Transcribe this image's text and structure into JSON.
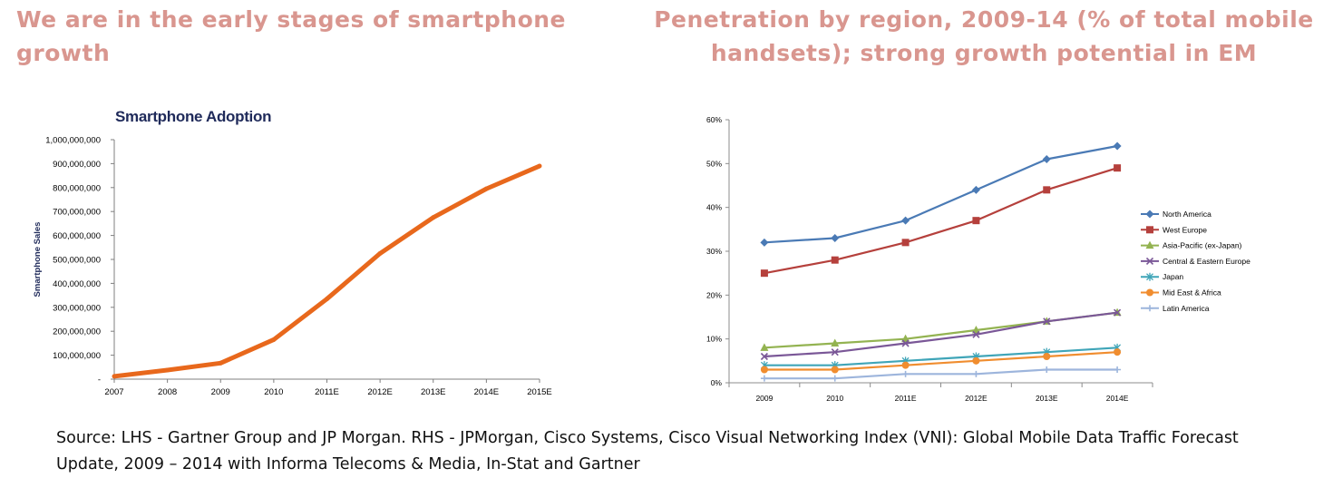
{
  "headings": {
    "left": "We are in the early stages of smartphone growth",
    "right": "Penetration by region, 2009-14 (% of total mobile handsets); strong growth potential in EM"
  },
  "source": "Source: LHS - Gartner Group and JP Morgan. RHS - JPMorgan, Cisco Systems, Cisco Visual Networking Index (VNI): Global Mobile Data Traffic Forecast Update, 2009 – 2014 with Informa Telecoms & Media, In-Stat and Gartner",
  "colors": {
    "heading": "#d9968f",
    "left_line": "#e8681c"
  },
  "chart_data": [
    {
      "type": "line",
      "title": "Smartphone Adoption",
      "xlabel": "",
      "ylabel": "Smartphone Sales",
      "categories": [
        "2007",
        "2008",
        "2009",
        "2010",
        "2011E",
        "2012E",
        "2013E",
        "2014E",
        "2015E"
      ],
      "values": [
        12000000,
        38000000,
        67000000,
        165000000,
        335000000,
        525000000,
        675000000,
        795000000,
        890000000
      ],
      "ylim": [
        0,
        1000000000
      ],
      "yticks": [
        "-",
        "100,000,000",
        "200,000,000",
        "300,000,000",
        "400,000,000",
        "500,000,000",
        "600,000,000",
        "700,000,000",
        "800,000,000",
        "900,000,000",
        "1,000,000,000"
      ],
      "grid": false,
      "legend": "none",
      "color": "#e8681c"
    },
    {
      "type": "line",
      "title": "",
      "xlabel": "",
      "ylabel": "",
      "categories": [
        "2009",
        "2010",
        "2011E",
        "2012E",
        "2013E",
        "2014E"
      ],
      "ylim": [
        0,
        60
      ],
      "yticks": [
        "0%",
        "10%",
        "20%",
        "30%",
        "40%",
        "50%",
        "60%"
      ],
      "grid": false,
      "legend": "right",
      "series": [
        {
          "name": "North America",
          "values": [
            32,
            33,
            37,
            44,
            51,
            54
          ],
          "color": "#4a7ab5",
          "marker": "diamond"
        },
        {
          "name": "West Europe",
          "values": [
            25,
            28,
            32,
            37,
            44,
            49
          ],
          "color": "#b5403c",
          "marker": "square"
        },
        {
          "name": "Asia-Pacific (ex-Japan)",
          "values": [
            8,
            9,
            10,
            12,
            14,
            16
          ],
          "color": "#93b351",
          "marker": "triangle"
        },
        {
          "name": "Central & Eastern Europe",
          "values": [
            6,
            7,
            9,
            11,
            14,
            16
          ],
          "color": "#7a5797",
          "marker": "x"
        },
        {
          "name": "Japan",
          "values": [
            4,
            4,
            5,
            6,
            7,
            8
          ],
          "color": "#3fa5b8",
          "marker": "star"
        },
        {
          "name": "Mid East & Africa",
          "values": [
            3,
            3,
            4,
            5,
            6,
            7
          ],
          "color": "#f08d2f",
          "marker": "circle"
        },
        {
          "name": "Latin America",
          "values": [
            1,
            1,
            2,
            2,
            3,
            3
          ],
          "color": "#9db5dc",
          "marker": "plus"
        }
      ]
    }
  ]
}
